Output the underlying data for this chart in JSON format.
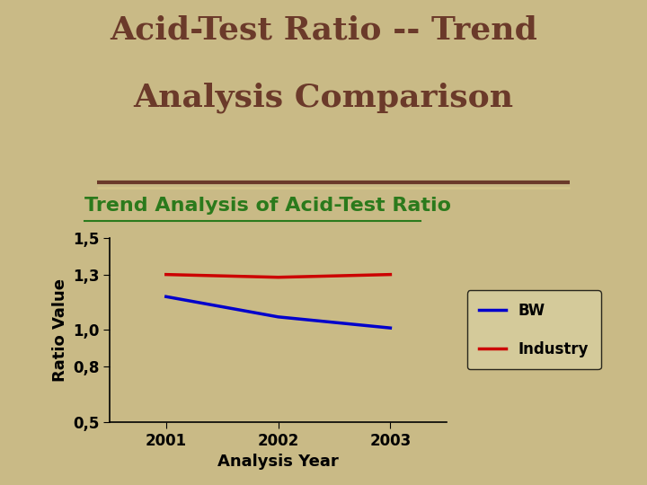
{
  "title_line1": "Acid-Test Ratio -- Trend",
  "title_line2": "Analysis Comparison",
  "subtitle": "Trend Analysis of Acid-Test Ratio",
  "xlabel": "Analysis Year",
  "ylabel": "Ratio Value",
  "years": [
    2001,
    2002,
    2003
  ],
  "bw_values": [
    1.18,
    1.07,
    1.01
  ],
  "industry_values": [
    1.3,
    1.285,
    1.3
  ],
  "ylim": [
    0.5,
    1.5
  ],
  "yticks": [
    0.5,
    0.8,
    1.0,
    1.3,
    1.5
  ],
  "ytick_labels": [
    "0,5",
    "0,8",
    "1,0",
    "1,3",
    "1,5"
  ],
  "bg_color": "#C9BA86",
  "plot_bg_color": "#C9BA86",
  "title_color": "#6B3A2A",
  "subtitle_color": "#2B7A1C",
  "bw_color": "#0000CC",
  "industry_color": "#CC0000",
  "legend_labels": [
    "BW",
    "Industry"
  ],
  "title_fontsize": 26,
  "subtitle_fontsize": 16,
  "axis_label_fontsize": 13,
  "tick_fontsize": 12,
  "legend_fontsize": 12
}
